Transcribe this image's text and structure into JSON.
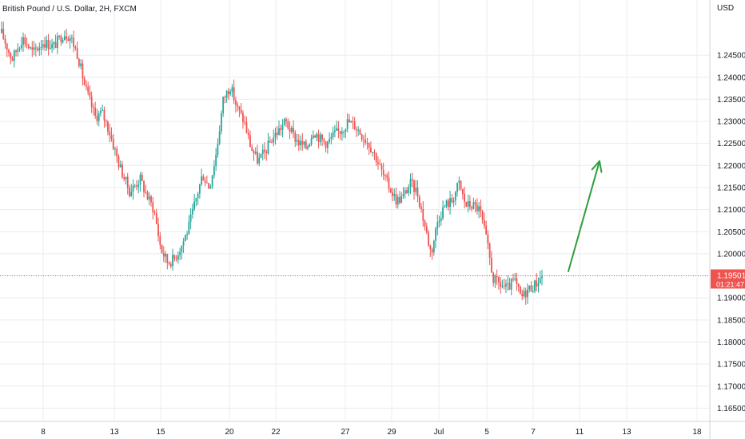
{
  "chart_data": {
    "type": "candlestick",
    "title": "British Pound / U.S. Dollar, 2H, FXCM",
    "currency_label": "USD",
    "ylim": [
      1.162,
      1.2575
    ],
    "y_ticks": [
      "1.24500",
      "1.24000",
      "1.23500",
      "1.23000",
      "1.22500",
      "1.22000",
      "1.21500",
      "1.21000",
      "1.20500",
      "1.20000",
      "1.19500",
      "1.19000",
      "1.18500",
      "1.18000",
      "1.17500",
      "1.17000",
      "1.16500"
    ],
    "x_ticks": [
      "8",
      "13",
      "15",
      "20",
      "22",
      "27",
      "29",
      "Jul",
      "5",
      "7",
      "11",
      "13",
      "18"
    ],
    "last_price": {
      "value": 1.19501,
      "label": "1.19501",
      "countdown": "01:21:47"
    },
    "close_path": [
      [
        0,
        1.25
      ],
      [
        3,
        1.244
      ],
      [
        6,
        1.249
      ],
      [
        9,
        1.2455
      ],
      [
        12,
        1.248
      ],
      [
        15,
        1.247
      ],
      [
        18,
        1.25
      ],
      [
        20,
        1.249
      ],
      [
        22,
        1.245
      ],
      [
        24,
        1.238
      ],
      [
        27,
        1.231
      ],
      [
        29,
        1.232
      ],
      [
        31,
        1.228
      ],
      [
        34,
        1.22
      ],
      [
        37,
        1.214
      ],
      [
        40,
        1.217
      ],
      [
        42,
        1.213
      ],
      [
        44,
        1.21
      ],
      [
        46,
        1.201
      ],
      [
        48,
        1.198
      ],
      [
        50,
        1.199
      ],
      [
        52,
        1.202
      ],
      [
        54,
        1.206
      ],
      [
        56,
        1.212
      ],
      [
        58,
        1.218
      ],
      [
        60,
        1.215
      ],
      [
        62,
        1.223
      ],
      [
        64,
        1.235
      ],
      [
        66,
        1.238
      ],
      [
        68,
        1.233
      ],
      [
        70,
        1.23
      ],
      [
        72,
        1.224
      ],
      [
        74,
        1.221
      ],
      [
        76,
        1.223
      ],
      [
        78,
        1.226
      ],
      [
        80,
        1.228
      ],
      [
        82,
        1.23
      ],
      [
        84,
        1.227
      ],
      [
        86,
        1.225
      ],
      [
        88,
        1.224
      ],
      [
        90,
        1.228
      ],
      [
        92,
        1.226
      ],
      [
        94,
        1.225
      ],
      [
        96,
        1.227
      ],
      [
        98,
        1.228
      ],
      [
        100,
        1.23
      ],
      [
        102,
        1.229
      ],
      [
        104,
        1.227
      ],
      [
        106,
        1.225
      ],
      [
        108,
        1.222
      ],
      [
        110,
        1.218
      ],
      [
        112,
        1.215
      ],
      [
        114,
        1.212
      ],
      [
        116,
        1.213
      ],
      [
        118,
        1.216
      ],
      [
        120,
        1.214
      ],
      [
        122,
        1.207
      ],
      [
        124,
        1.2
      ],
      [
        126,
        1.208
      ],
      [
        128,
        1.211
      ],
      [
        130,
        1.212
      ],
      [
        132,
        1.216
      ],
      [
        134,
        1.211
      ],
      [
        136,
        1.211
      ],
      [
        138,
        1.21
      ],
      [
        140,
        1.203
      ],
      [
        142,
        1.194
      ],
      [
        144,
        1.193
      ],
      [
        146,
        1.192
      ],
      [
        148,
        1.194
      ],
      [
        150,
        1.19
      ],
      [
        152,
        1.192
      ],
      [
        154,
        1.193
      ],
      [
        156,
        1.195
      ]
    ],
    "arrow": {
      "from": [
        162,
        1.196
      ],
      "to": [
        176,
        1.221
      ],
      "color": "#2e9e3a"
    },
    "colors": {
      "up": "#26a69a",
      "down": "#ef5350",
      "grid": "#e9ecf2",
      "price_line": "#ef5350",
      "axis_text": "#131722"
    }
  }
}
